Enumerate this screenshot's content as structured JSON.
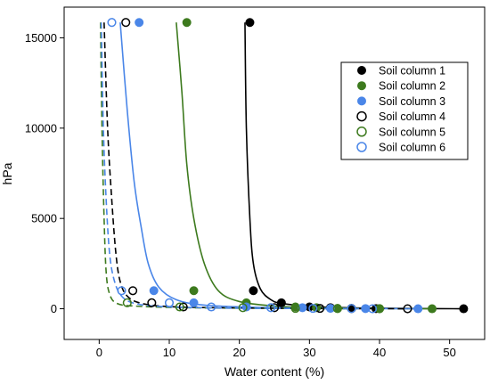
{
  "chart_data": {
    "type": "scatter",
    "xlabel": "Water content (%)",
    "ylabel": "hPa",
    "xlim": [
      -5,
      55
    ],
    "ylim": [
      -1700,
      16700
    ],
    "xticks": [
      "0",
      "10",
      "20",
      "30",
      "40",
      "50"
    ],
    "yticks": [
      "0",
      "5000",
      "10000",
      "15000"
    ],
    "legend_position": "top-right",
    "series": [
      {
        "name": "Soil column 1",
        "color": "#000000",
        "marker": "filled",
        "line_style": "solid",
        "points": [
          [
            21.5,
            15850
          ],
          [
            22,
            1000
          ],
          [
            26,
            330
          ],
          [
            30,
            100
          ],
          [
            33,
            60
          ],
          [
            36,
            20
          ],
          [
            39.5,
            10
          ],
          [
            52,
            0
          ]
        ],
        "curve": [
          [
            20.8,
            15850
          ],
          [
            21.0,
            10000
          ],
          [
            21.5,
            5000
          ],
          [
            22.0,
            2500
          ],
          [
            23.0,
            1100
          ],
          [
            24.5,
            500
          ],
          [
            26.0,
            300
          ],
          [
            30.0,
            130
          ],
          [
            35.0,
            60
          ],
          [
            40.0,
            30
          ],
          [
            46.0,
            10
          ],
          [
            52.0,
            0
          ]
        ]
      },
      {
        "name": "Soil column 2",
        "color": "#3d7a1e",
        "marker": "filled",
        "line_style": "solid",
        "points": [
          [
            12.5,
            15850
          ],
          [
            13.5,
            1000
          ],
          [
            21,
            330
          ],
          [
            28,
            100
          ],
          [
            31,
            60
          ],
          [
            34,
            20
          ],
          [
            40,
            10
          ],
          [
            47.5,
            0
          ]
        ],
        "curve": [
          [
            11.0,
            15850
          ],
          [
            11.8,
            12000
          ],
          [
            12.5,
            8000
          ],
          [
            13.5,
            5000
          ],
          [
            15.0,
            2500
          ],
          [
            17.0,
            1000
          ],
          [
            20.0,
            400
          ],
          [
            25.0,
            150
          ],
          [
            30.0,
            70
          ],
          [
            37.0,
            20
          ],
          [
            47.5,
            0
          ]
        ]
      },
      {
        "name": "Soil column 3",
        "color": "#4a86e8",
        "marker": "filled",
        "line_style": "solid",
        "points": [
          [
            5.7,
            15850
          ],
          [
            7.8,
            1000
          ],
          [
            13.5,
            330
          ],
          [
            21,
            100
          ],
          [
            29,
            60
          ],
          [
            33,
            20
          ],
          [
            38,
            10
          ],
          [
            45.5,
            0
          ]
        ],
        "curve": [
          [
            3.0,
            15850
          ],
          [
            4.0,
            11000
          ],
          [
            5.0,
            7000
          ],
          [
            6.0,
            4500
          ],
          [
            7.0,
            2500
          ],
          [
            8.5,
            1200
          ],
          [
            11.0,
            500
          ],
          [
            15.0,
            200
          ],
          [
            22.0,
            80
          ],
          [
            30.0,
            30
          ],
          [
            40.0,
            10
          ],
          [
            45.5,
            0
          ]
        ]
      },
      {
        "name": "Soil column 4",
        "color": "#000000",
        "marker": "open",
        "line_style": "dashed",
        "points": [
          [
            3.8,
            15850
          ],
          [
            4.8,
            1000
          ],
          [
            7.5,
            330
          ],
          [
            12,
            100
          ],
          [
            25,
            60
          ],
          [
            31.5,
            20
          ],
          [
            36,
            10
          ],
          [
            44,
            0
          ]
        ],
        "curve": [
          [
            0.7,
            15850
          ],
          [
            1.2,
            10000
          ],
          [
            1.8,
            6000
          ],
          [
            2.4,
            3000
          ],
          [
            3.0,
            1500
          ],
          [
            4.0,
            700
          ],
          [
            6.0,
            300
          ],
          [
            10.0,
            120
          ],
          [
            18.0,
            50
          ],
          [
            30.0,
            15
          ],
          [
            44.0,
            0
          ]
        ]
      },
      {
        "name": "Soil column 5",
        "color": "#3d7a1e",
        "marker": "open",
        "line_style": "dashed",
        "points": [
          [
            4,
            330
          ],
          [
            11.5,
            100
          ],
          [
            20.5,
            60
          ],
          [
            28,
            20
          ],
          [
            34,
            10
          ],
          [
            40,
            0
          ]
        ],
        "curve": [
          [
            0.2,
            15850
          ],
          [
            0.4,
            10000
          ],
          [
            0.7,
            5000
          ],
          [
            1.0,
            2000
          ],
          [
            1.5,
            800
          ],
          [
            2.5,
            300
          ],
          [
            5.0,
            150
          ],
          [
            12.0,
            60
          ],
          [
            25.0,
            20
          ],
          [
            40.0,
            0
          ]
        ]
      },
      {
        "name": "Soil column 6",
        "color": "#4a86e8",
        "marker": "open",
        "line_style": "dashed",
        "points": [
          [
            1.8,
            15850
          ],
          [
            3.2,
            1000
          ],
          [
            10,
            330
          ],
          [
            16,
            100
          ],
          [
            24.5,
            60
          ],
          [
            30.5,
            20
          ],
          [
            36,
            10
          ],
          [
            39,
            0
          ]
        ],
        "curve": [
          [
            0.3,
            15850
          ],
          [
            0.6,
            10000
          ],
          [
            1.0,
            6000
          ],
          [
            1.5,
            3000
          ],
          [
            2.2,
            1500
          ],
          [
            3.2,
            700
          ],
          [
            5.0,
            300
          ],
          [
            9.0,
            120
          ],
          [
            18.0,
            40
          ],
          [
            30.0,
            12
          ],
          [
            39.0,
            0
          ]
        ]
      }
    ]
  }
}
